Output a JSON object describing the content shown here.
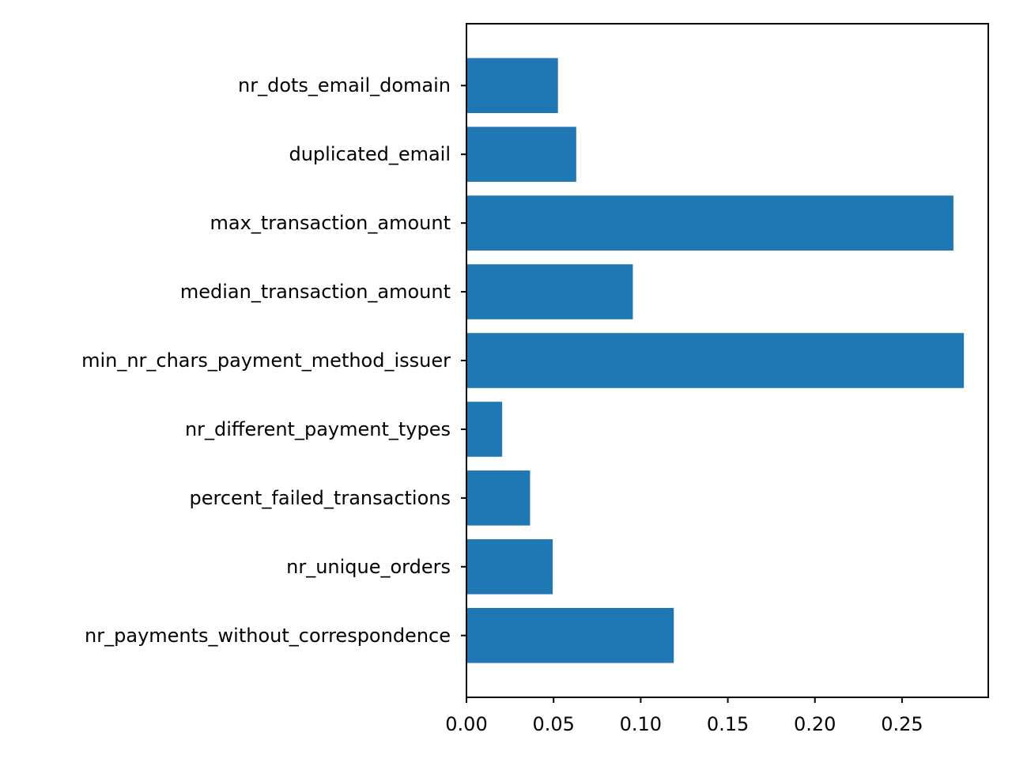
{
  "chart_data": {
    "type": "bar",
    "orientation": "horizontal",
    "categories": [
      "nr_payments_without_correspondence",
      "nr_unique_orders",
      "percent_failed_transactions",
      "nr_different_payment_types",
      "min_nr_chars_payment_method_issuer",
      "median_transaction_amount",
      "max_transaction_amount",
      "duplicated_email",
      "nr_dots_email_domain"
    ],
    "values": [
      0.119,
      0.0495,
      0.0365,
      0.0205,
      0.2855,
      0.0955,
      0.2795,
      0.063,
      0.0525
    ],
    "title": "",
    "xlabel": "",
    "ylabel": "",
    "xlim": [
      0,
      0.2995
    ],
    "x_ticks": [
      0.0,
      0.05,
      0.1,
      0.15,
      0.2,
      0.25
    ],
    "x_tick_labels": [
      "0.00",
      "0.05",
      "0.10",
      "0.15",
      "0.20",
      "0.25"
    ],
    "bar_color": "#1f77b4",
    "grid": false,
    "legend": "none"
  }
}
